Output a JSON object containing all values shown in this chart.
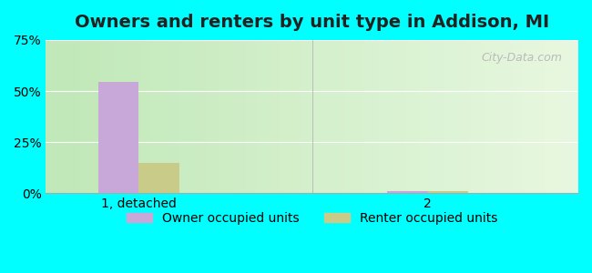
{
  "title": "Owners and renters by unit type in Addison, MI",
  "categories": [
    "1, detached",
    "2"
  ],
  "owner_values": [
    54.5,
    0.8
  ],
  "renter_values": [
    15.0,
    0.8
  ],
  "owner_color": "#c8a8d8",
  "renter_color": "#c8cc88",
  "ylim": [
    0,
    75
  ],
  "yticks": [
    0,
    25,
    50,
    75
  ],
  "yticklabels": [
    "0%",
    "25%",
    "50%",
    "75%"
  ],
  "bg_color_left": "#c8e8c0",
  "bg_color_right": "#e8f8e0",
  "outer_bg": "#00ffff",
  "watermark": "City-Data.com",
  "bar_width": 0.35,
  "group_positions": [
    1.0,
    3.5
  ],
  "title_fontsize": 14,
  "legend_fontsize": 10,
  "tick_fontsize": 10
}
